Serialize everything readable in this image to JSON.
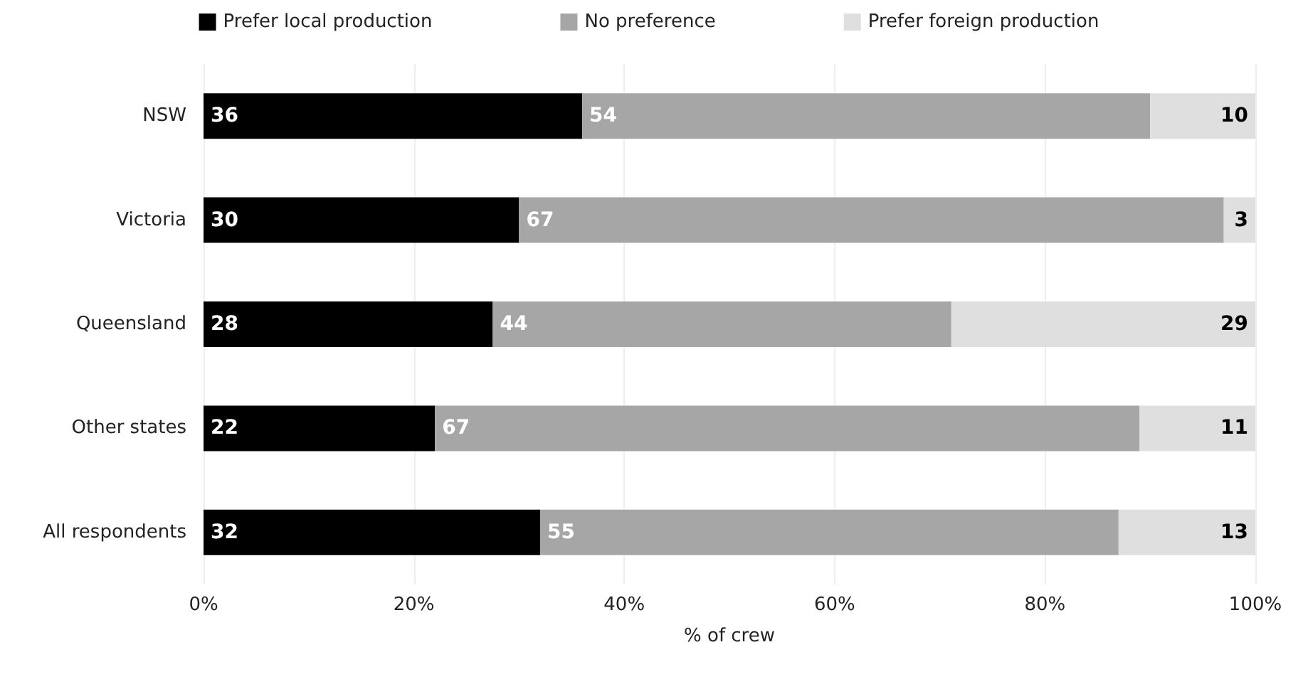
{
  "chart_data": {
    "type": "bar",
    "orientation": "horizontal",
    "stacked": true,
    "xlabel": "% of crew",
    "categories": [
      "NSW",
      "Victoria",
      "Queensland",
      "Other states",
      "All respondents"
    ],
    "series": [
      {
        "name": "Prefer local production",
        "color": "#000000",
        "values": [
          36,
          30,
          27.5,
          22,
          32
        ],
        "value_labels": [
          "36",
          "30",
          "28",
          "22",
          "32"
        ]
      },
      {
        "name": "No preference",
        "color": "#a6a6a6",
        "values": [
          54,
          67,
          43.6,
          67,
          55
        ],
        "value_labels": [
          "54",
          "67",
          "44",
          "67",
          "55"
        ]
      },
      {
        "name": "Prefer foreign production",
        "color": "#dfdfdf",
        "values": [
          10,
          3,
          28.9,
          11,
          13
        ],
        "value_labels": [
          "10",
          "3",
          "29",
          "11",
          "13"
        ]
      }
    ],
    "xlim": [
      0,
      100
    ],
    "xticks": [
      {
        "value": 0,
        "label": "0%"
      },
      {
        "value": 20,
        "label": "20%"
      },
      {
        "value": 40,
        "label": "40%"
      },
      {
        "value": 60,
        "label": "60%"
      },
      {
        "value": 80,
        "label": "80%"
      },
      {
        "value": 100,
        "label": "100%"
      }
    ],
    "grid": "x",
    "legend": "top"
  }
}
